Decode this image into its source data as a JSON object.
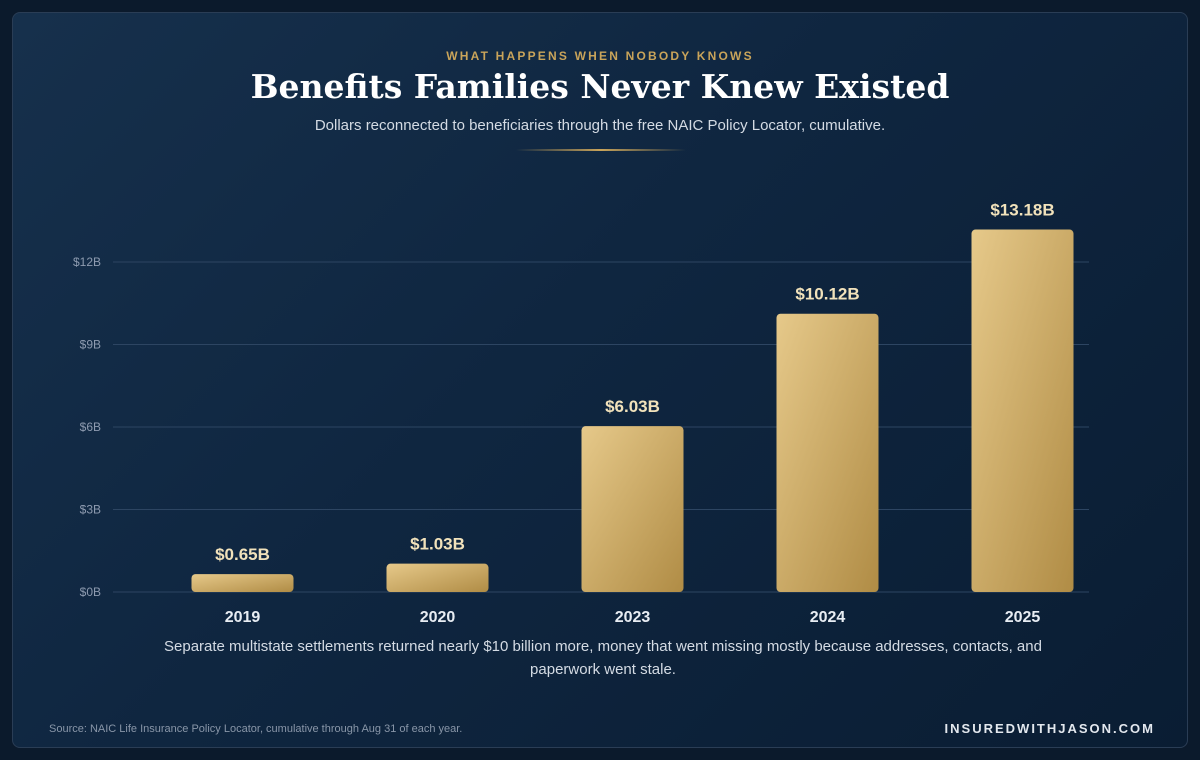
{
  "header": {
    "eyebrow": "WHAT HAPPENS WHEN NOBODY KNOWS",
    "title": "Benefits Families Never Knew Existed",
    "subtitle": "Dollars reconnected to beneficiaries through the free NAIC Policy Locator, cumulative."
  },
  "footer": {
    "note": "Separate multistate settlements returned nearly $10 billion more, money that went missing mostly because addresses, contacts, and paperwork went stale.",
    "source": "Source: NAIC Life Insurance Policy Locator, cumulative through Aug 31 of each year.",
    "brand": "INSUREDWITHJASON.COM"
  },
  "colors": {
    "background": "#0f2640",
    "accent_gold": "#c9a45a",
    "bar_light": "#e6c98a",
    "bar_dark": "#b08c45",
    "gridline": "#2d4562"
  },
  "chart_data": {
    "type": "bar",
    "categories": [
      "2019",
      "2020",
      "2023",
      "2024",
      "2025"
    ],
    "values": [
      0.65,
      1.03,
      6.03,
      10.12,
      13.18
    ],
    "value_labels": [
      "$0.65B",
      "$1.03B",
      "$6.03B",
      "$10.12B",
      "$13.18B"
    ],
    "yticks": [
      0,
      3,
      6,
      9,
      12
    ],
    "ytick_labels": [
      "$0B",
      "$3B",
      "$6B",
      "$9B",
      "$12B"
    ],
    "ylim": [
      0,
      12
    ],
    "grid": true,
    "xlabel": "",
    "ylabel": ""
  }
}
